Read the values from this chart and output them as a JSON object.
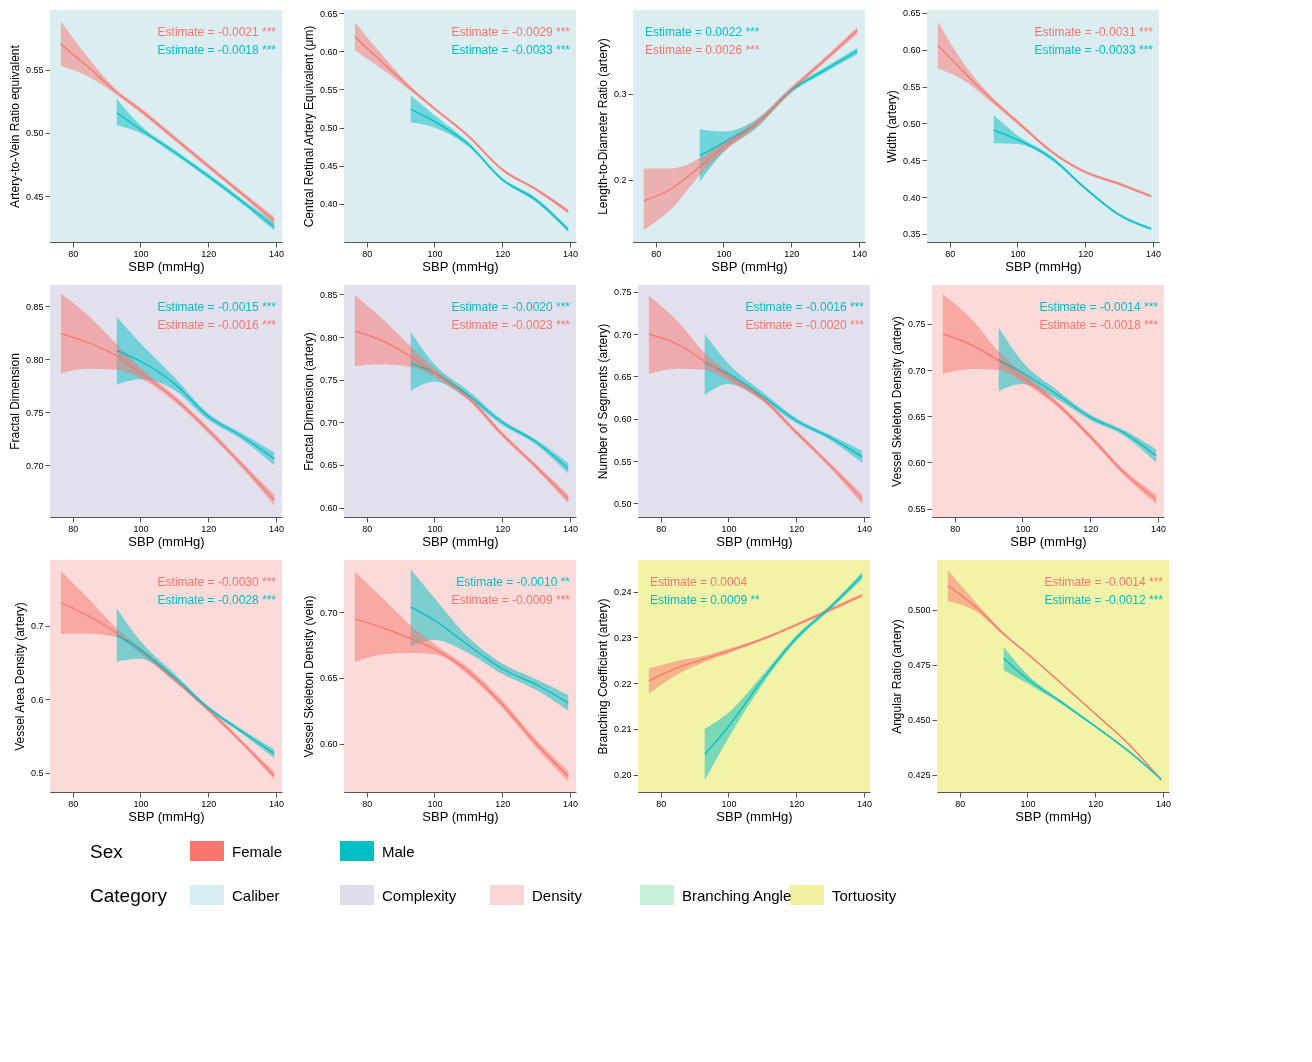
{
  "chart_data": [
    {
      "type": "line",
      "xlabel": "SBP (mmHg)",
      "ylabel": "Artery-to-Vein Ratio equivalent",
      "xlim": [
        73.3,
        141.8
      ],
      "xticks": [
        80,
        100,
        120,
        140
      ],
      "ylim": [
        0.414,
        0.597
      ],
      "yticks": [
        0.45,
        {
          "value": 0.5,
          "label": "0.50"
        },
        0.55
      ],
      "annotations": [
        "Estimate = -0.0021 ***",
        "Estimate = -0.0018 ***"
      ],
      "bands": [
        {
          "axis": "x",
          "from": 73.3,
          "to": 141.8,
          "color": "#dcedf2"
        }
      ],
      "series": [
        {
          "color": "#f8766d",
          "x": [
            76.5,
            85,
            93,
            100,
            110,
            120,
            130,
            139.5
          ],
          "values": [
            0.57,
            0.551,
            0.532,
            0.518,
            0.496,
            0.474,
            0.452,
            0.431
          ],
          "lower": [
            0.553,
            0.544,
            0.53,
            0.516,
            0.494,
            0.472,
            0.45,
            0.428
          ],
          "upper": [
            0.588,
            0.558,
            0.534,
            0.52,
            0.498,
            0.476,
            0.454,
            0.434
          ]
        },
        {
          "color": "#00bfc4",
          "x": [
            93,
            100,
            110,
            120,
            130,
            139.5
          ],
          "values": [
            0.516,
            0.503,
            0.485,
            0.466,
            0.446,
            0.426
          ],
          "lower": [
            0.506,
            0.5,
            0.483,
            0.464,
            0.444,
            0.423
          ],
          "upper": [
            0.527,
            0.506,
            0.487,
            0.468,
            0.448,
            0.429
          ]
        }
      ]
    },
    {
      "type": "line",
      "xlabel": "SBP (mmHg)",
      "ylabel": "Central Retinal Artery Equivalent (μm)",
      "xlim": [
        73.3,
        141.8
      ],
      "xticks": [
        80,
        100,
        120,
        140
      ],
      "ylim": [
        0.35,
        0.654
      ],
      "yticks": [
        {
          "value": 0.4,
          "label": "0.40"
        },
        0.45,
        {
          "value": 0.5,
          "label": "0.50"
        },
        0.55,
        {
          "value": 0.6,
          "label": "0.60"
        },
        0.65
      ],
      "annotations": [
        "Estimate = -0.0029 ***",
        "Estimate = -0.0033 ***"
      ],
      "bands": [
        {
          "axis": "x",
          "from": 73.3,
          "to": 141.8,
          "color": "#dcedf2"
        }
      ],
      "series": [
        {
          "color": "#f8766d",
          "x": [
            76.5,
            85,
            93,
            100,
            110,
            120,
            130,
            139.5
          ],
          "values": [
            0.619,
            0.584,
            0.551,
            0.525,
            0.489,
            0.445,
            0.419,
            0.39
          ],
          "lower": [
            0.601,
            0.575,
            0.548,
            0.523,
            0.487,
            0.443,
            0.417,
            0.387
          ],
          "upper": [
            0.638,
            0.593,
            0.554,
            0.527,
            0.491,
            0.447,
            0.421,
            0.393
          ]
        },
        {
          "color": "#00bfc4",
          "x": [
            93,
            100,
            110,
            120,
            130,
            139.5
          ],
          "values": [
            0.524,
            0.508,
            0.478,
            0.432,
            0.405,
            0.366
          ],
          "lower": [
            0.507,
            0.5,
            0.475,
            0.43,
            0.402,
            0.363
          ],
          "upper": [
            0.542,
            0.516,
            0.481,
            0.434,
            0.408,
            0.369
          ]
        }
      ]
    },
    {
      "type": "line",
      "xlabel": "SBP (mmHg)",
      "ylabel": "Length-to-Diameter Ratio (artery)",
      "xlim": [
        73.3,
        141.8
      ],
      "xticks": [
        80,
        100,
        120,
        140
      ],
      "ylim": [
        0.127,
        0.398
      ],
      "yticks": [
        0.2,
        0.3
      ],
      "annotations": [
        "Estimate = 0.0022 ***",
        "Estimate = 0.0026 ***"
      ],
      "bands": [
        {
          "axis": "x",
          "from": 73.3,
          "to": 141.8,
          "color": "#dcedf2"
        }
      ],
      "series": [
        {
          "color": "#00bfc4",
          "x": [
            93,
            100,
            110,
            120,
            130,
            139.5
          ],
          "values": [
            0.228,
            0.243,
            0.266,
            0.304,
            0.328,
            0.35
          ],
          "lower": [
            0.197,
            0.232,
            0.261,
            0.301,
            0.325,
            0.346
          ],
          "upper": [
            0.259,
            0.256,
            0.271,
            0.307,
            0.331,
            0.354
          ]
        },
        {
          "color": "#f8766d",
          "x": [
            76.5,
            85,
            93,
            100,
            110,
            120,
            130,
            139.5
          ],
          "values": [
            0.175,
            0.19,
            0.215,
            0.238,
            0.266,
            0.305,
            0.34,
            0.374
          ],
          "lower": [
            0.141,
            0.167,
            0.205,
            0.232,
            0.262,
            0.302,
            0.337,
            0.37
          ],
          "upper": [
            0.213,
            0.213,
            0.225,
            0.244,
            0.27,
            0.308,
            0.343,
            0.378
          ]
        }
      ]
    },
    {
      "type": "line",
      "xlabel": "SBP (mmHg)",
      "ylabel": "Width (artery)",
      "xlim": [
        73.3,
        141.8
      ],
      "xticks": [
        80,
        100,
        120,
        140
      ],
      "ylim": [
        0.339,
        0.654
      ],
      "yticks": [
        0.35,
        {
          "value": 0.4,
          "label": "0.40"
        },
        0.45,
        {
          "value": 0.5,
          "label": "0.50"
        },
        0.55,
        {
          "value": 0.6,
          "label": "0.60"
        },
        0.65
      ],
      "annotations": [
        "Estimate = -0.0031 ***",
        "Estimate = -0.0033 ***"
      ],
      "bands": [
        {
          "axis": "x",
          "from": 73.3,
          "to": 141.8,
          "color": "#dcedf2"
        }
      ],
      "series": [
        {
          "color": "#f8766d",
          "x": [
            76.5,
            85,
            93,
            100,
            110,
            120,
            130,
            139.5
          ],
          "values": [
            0.606,
            0.566,
            0.53,
            0.502,
            0.462,
            0.434,
            0.418,
            0.401
          ],
          "lower": [
            0.575,
            0.556,
            0.526,
            0.499,
            0.46,
            0.432,
            0.416,
            0.399
          ],
          "upper": [
            0.638,
            0.576,
            0.534,
            0.505,
            0.464,
            0.436,
            0.42,
            0.403
          ]
        },
        {
          "color": "#00bfc4",
          "x": [
            93,
            100,
            110,
            120,
            130,
            139.5
          ],
          "values": [
            0.491,
            0.478,
            0.453,
            0.412,
            0.376,
            0.357
          ],
          "lower": [
            0.473,
            0.472,
            0.45,
            0.41,
            0.374,
            0.355
          ],
          "upper": [
            0.511,
            0.484,
            0.456,
            0.414,
            0.378,
            0.359
          ]
        }
      ]
    },
    {
      "type": "line",
      "xlabel": "SBP (mmHg)",
      "ylabel": "Fractal Dimension",
      "xlim": [
        73.3,
        141.8
      ],
      "xticks": [
        80,
        100,
        120,
        140
      ],
      "ylim": [
        0.651,
        0.87
      ],
      "yticks": [
        {
          "value": 0.7,
          "label": "0.70"
        },
        0.75,
        {
          "value": 0.8,
          "label": "0.80"
        },
        0.85
      ],
      "annotations": [
        "Estimate = -0.0015 ***",
        "Estimate = -0.0016 ***"
      ],
      "bands": [
        {
          "axis": "x",
          "from": 73.3,
          "to": 141.8,
          "color": "#e3e0ee"
        }
      ],
      "series": [
        {
          "color": "#00bfc4",
          "x": [
            93,
            100,
            110,
            120,
            130,
            139.5
          ],
          "values": [
            0.808,
            0.798,
            0.777,
            0.746,
            0.727,
            0.706
          ],
          "lower": [
            0.776,
            0.781,
            0.771,
            0.743,
            0.724,
            0.7
          ],
          "upper": [
            0.84,
            0.815,
            0.783,
            0.749,
            0.73,
            0.712
          ]
        },
        {
          "color": "#f8766d",
          "x": [
            76.5,
            85,
            93,
            100,
            110,
            120,
            130,
            139.5
          ],
          "values": [
            0.824,
            0.815,
            0.803,
            0.787,
            0.763,
            0.733,
            0.7,
            0.667
          ],
          "lower": [
            0.787,
            0.791,
            0.79,
            0.782,
            0.76,
            0.73,
            0.697,
            0.662
          ],
          "upper": [
            0.862,
            0.84,
            0.814,
            0.792,
            0.766,
            0.736,
            0.703,
            0.672
          ]
        }
      ]
    },
    {
      "type": "line",
      "xlabel": "SBP (mmHg)",
      "ylabel": "Fractal Dimension (artery)",
      "xlim": [
        73.3,
        141.8
      ],
      "xticks": [
        80,
        100,
        120,
        140
      ],
      "ylim": [
        0.589,
        0.861
      ],
      "yticks": [
        {
          "value": 0.6,
          "label": "0.60"
        },
        0.65,
        {
          "value": 0.7,
          "label": "0.70"
        },
        0.75,
        {
          "value": 0.8,
          "label": "0.80"
        },
        0.85
      ],
      "annotations": [
        "Estimate = -0.0020 ***",
        "Estimate = -0.0023 ***"
      ],
      "bands": [
        {
          "axis": "x",
          "from": 73.3,
          "to": 141.8,
          "color": "#e3e0ee"
        }
      ],
      "series": [
        {
          "color": "#00bfc4",
          "x": [
            93,
            100,
            110,
            120,
            130,
            139.5
          ],
          "values": [
            0.769,
            0.758,
            0.732,
            0.7,
            0.677,
            0.646
          ],
          "lower": [
            0.737,
            0.748,
            0.727,
            0.697,
            0.674,
            0.64
          ],
          "upper": [
            0.806,
            0.768,
            0.737,
            0.703,
            0.68,
            0.652
          ]
        },
        {
          "color": "#f8766d",
          "x": [
            76.5,
            85,
            93,
            100,
            110,
            120,
            130,
            139.5
          ],
          "values": [
            0.807,
            0.795,
            0.777,
            0.758,
            0.729,
            0.686,
            0.648,
            0.61
          ],
          "lower": [
            0.766,
            0.768,
            0.765,
            0.753,
            0.726,
            0.683,
            0.645,
            0.605
          ],
          "upper": [
            0.849,
            0.82,
            0.789,
            0.763,
            0.732,
            0.689,
            0.651,
            0.615
          ]
        }
      ]
    },
    {
      "type": "line",
      "xlabel": "SBP (mmHg)",
      "ylabel": "Number of Segments (artery)",
      "xlim": [
        73.3,
        141.8
      ],
      "xticks": [
        80,
        100,
        120,
        140
      ],
      "ylim": [
        0.484,
        0.758
      ],
      "yticks": [
        {
          "value": 0.5,
          "label": "0.50"
        },
        0.55,
        {
          "value": 0.6,
          "label": "0.60"
        },
        0.65,
        {
          "value": 0.7,
          "label": "0.70"
        },
        0.75
      ],
      "annotations": [
        "Estimate = -0.0016 ***",
        "Estimate = -0.0020 ***"
      ],
      "bands": [
        {
          "axis": "x",
          "from": 73.3,
          "to": 141.8,
          "color": "#e3e0ee"
        }
      ],
      "series": [
        {
          "color": "#00bfc4",
          "x": [
            93,
            100,
            110,
            120,
            130,
            139.5
          ],
          "values": [
            0.666,
            0.653,
            0.627,
            0.598,
            0.578,
            0.555
          ],
          "lower": [
            0.628,
            0.641,
            0.622,
            0.595,
            0.575,
            0.548
          ],
          "upper": [
            0.7,
            0.665,
            0.632,
            0.601,
            0.581,
            0.562
          ]
        },
        {
          "color": "#f8766d",
          "x": [
            76.5,
            85,
            93,
            100,
            110,
            120,
            130,
            139.5
          ],
          "values": [
            0.7,
            0.688,
            0.668,
            0.65,
            0.624,
            0.584,
            0.545,
            0.505
          ],
          "lower": [
            0.653,
            0.659,
            0.658,
            0.645,
            0.621,
            0.581,
            0.542,
            0.499
          ],
          "upper": [
            0.746,
            0.715,
            0.678,
            0.655,
            0.627,
            0.587,
            0.548,
            0.511
          ]
        }
      ]
    },
    {
      "type": "line",
      "xlabel": "SBP (mmHg)",
      "ylabel": "Vessel Skeleton Density (artery)",
      "xlim": [
        73.3,
        141.8
      ],
      "xticks": [
        80,
        100,
        120,
        140
      ],
      "ylim": [
        0.541,
        0.792
      ],
      "yticks": [
        0.55,
        {
          "value": 0.6,
          "label": "0.60"
        },
        0.65,
        {
          "value": 0.7,
          "label": "0.70"
        },
        0.75
      ],
      "annotations": [
        "Estimate = -0.0014 ***",
        "Estimate = -0.0018 ***"
      ],
      "bands": [
        {
          "axis": "x",
          "from": 73.3,
          "to": 141.8,
          "color": "#fadbd9"
        }
      ],
      "series": [
        {
          "color": "#00bfc4",
          "x": [
            93,
            100,
            110,
            120,
            130,
            139.5
          ],
          "values": [
            0.711,
            0.697,
            0.674,
            0.649,
            0.632,
            0.607
          ],
          "lower": [
            0.677,
            0.685,
            0.669,
            0.646,
            0.629,
            0.6
          ],
          "upper": [
            0.746,
            0.709,
            0.679,
            0.652,
            0.635,
            0.614
          ]
        },
        {
          "color": "#f8766d",
          "x": [
            76.5,
            85,
            93,
            100,
            110,
            120,
            130,
            139.5
          ],
          "values": [
            0.739,
            0.727,
            0.71,
            0.692,
            0.664,
            0.628,
            0.589,
            0.56
          ],
          "lower": [
            0.696,
            0.701,
            0.7,
            0.687,
            0.661,
            0.625,
            0.586,
            0.555
          ],
          "upper": [
            0.782,
            0.755,
            0.72,
            0.697,
            0.667,
            0.631,
            0.592,
            0.565
          ]
        }
      ]
    },
    {
      "type": "line",
      "xlabel": "SBP (mmHg)",
      "ylabel": "Vessel Area Density (artery)",
      "xlim": [
        73.3,
        141.8
      ],
      "xticks": [
        80,
        100,
        120,
        140
      ],
      "ylim": [
        0.474,
        0.789
      ],
      "yticks": [
        0.5,
        0.6,
        0.7
      ],
      "annotations": [
        "Estimate = -0.0030 ***",
        "Estimate = -0.0028 ***"
      ],
      "bands": [
        {
          "axis": "x",
          "from": 73.3,
          "to": 141.8,
          "color": "#fadbd9"
        }
      ],
      "series": [
        {
          "color": "#f8766d",
          "x": [
            76.5,
            85,
            93,
            100,
            110,
            120,
            130,
            139.5
          ],
          "values": [
            0.731,
            0.712,
            0.69,
            0.666,
            0.627,
            0.586,
            0.541,
            0.496
          ],
          "lower": [
            0.689,
            0.689,
            0.684,
            0.662,
            0.624,
            0.583,
            0.538,
            0.491
          ],
          "upper": [
            0.774,
            0.735,
            0.696,
            0.67,
            0.63,
            0.589,
            0.544,
            0.501
          ]
        },
        {
          "color": "#00bfc4",
          "x": [
            93,
            100,
            110,
            120,
            130,
            139.5
          ],
          "values": [
            0.687,
            0.667,
            0.63,
            0.588,
            0.556,
            0.526
          ],
          "lower": [
            0.651,
            0.655,
            0.625,
            0.585,
            0.553,
            0.52
          ],
          "upper": [
            0.723,
            0.679,
            0.635,
            0.591,
            0.559,
            0.532
          ]
        }
      ]
    },
    {
      "type": "line",
      "xlabel": "SBP (mmHg)",
      "ylabel": "Vessel Skeleton Density (vein)",
      "xlim": [
        73.3,
        141.8
      ],
      "xticks": [
        80,
        100,
        120,
        140
      ],
      "ylim": [
        0.563,
        0.74
      ],
      "yticks": [
        {
          "value": 0.6,
          "label": "0.60"
        },
        0.65,
        {
          "value": 0.7,
          "label": "0.70"
        }
      ],
      "annotations": [
        "Estimate = -0.0010 **",
        "Estimate = -0.0009 ***"
      ],
      "bands": [
        {
          "axis": "x",
          "from": 73.3,
          "to": 141.8,
          "color": "#fadbd9"
        }
      ],
      "series": [
        {
          "color": "#00bfc4",
          "x": [
            93,
            100,
            110,
            120,
            130,
            139.5
          ],
          "values": [
            0.704,
            0.694,
            0.675,
            0.657,
            0.645,
            0.631
          ],
          "lower": [
            0.674,
            0.679,
            0.669,
            0.653,
            0.641,
            0.625
          ],
          "upper": [
            0.733,
            0.711,
            0.681,
            0.661,
            0.649,
            0.637
          ]
        },
        {
          "color": "#f8766d",
          "x": [
            76.5,
            85,
            93,
            100,
            110,
            120,
            130,
            139.5
          ],
          "values": [
            0.695,
            0.688,
            0.68,
            0.672,
            0.655,
            0.63,
            0.6,
            0.575
          ],
          "lower": [
            0.662,
            0.668,
            0.669,
            0.668,
            0.652,
            0.627,
            0.597,
            0.571
          ],
          "upper": [
            0.731,
            0.71,
            0.69,
            0.676,
            0.658,
            0.633,
            0.603,
            0.579
          ]
        }
      ]
    },
    {
      "type": "line",
      "xlabel": "SBP (mmHg)",
      "ylabel": "Branching Coefficient (artery)",
      "xlim": [
        73.3,
        141.8
      ],
      "xticks": [
        80,
        100,
        120,
        140
      ],
      "ylim": [
        0.1962,
        0.2469
      ],
      "yticks": [
        {
          "value": 0.2,
          "label": "0.20"
        },
        0.21,
        0.22,
        0.23,
        0.24
      ],
      "annotations": [
        "Estimate = 0.0004",
        "Estimate = 0.0009 **"
      ],
      "bands": [
        {
          "axis": "x",
          "from": 73.3,
          "to": 141.8,
          "color": "#f2f2a8"
        }
      ],
      "series": [
        {
          "color": "#f8766d",
          "x": [
            76.5,
            85,
            93,
            100,
            110,
            120,
            130,
            139.5
          ],
          "values": [
            0.2205,
            0.2234,
            0.2253,
            0.227,
            0.2296,
            0.2327,
            0.236,
            0.2392
          ],
          "lower": [
            0.2177,
            0.2219,
            0.2246,
            0.2265,
            0.2293,
            0.2324,
            0.2356,
            0.2388
          ],
          "upper": [
            0.2232,
            0.2249,
            0.226,
            0.2275,
            0.2299,
            0.233,
            0.2364,
            0.2396
          ]
        },
        {
          "color": "#00bfc4",
          "x": [
            93,
            100,
            110,
            120,
            130,
            139.5
          ],
          "values": [
            0.2044,
            0.2105,
            0.2207,
            0.2298,
            0.2365,
            0.2435
          ],
          "lower": [
            0.1987,
            0.208,
            0.2197,
            0.2292,
            0.236,
            0.2427
          ],
          "upper": [
            0.21,
            0.2135,
            0.2217,
            0.2304,
            0.237,
            0.2443
          ]
        }
      ]
    },
    {
      "type": "line",
      "xlabel": "SBP (mmHg)",
      "ylabel": "Angular Ratio (artery)",
      "xlim": [
        73.3,
        141.8
      ],
      "xticks": [
        80,
        100,
        120,
        140
      ],
      "ylim": [
        0.4171,
        0.5227
      ],
      "yticks": [
        0.425,
        {
          "value": 0.45,
          "label": "0.450"
        },
        0.475,
        {
          "value": 0.5,
          "label": "0.500"
        }
      ],
      "annotations": [
        "Estimate = -0.0014 ***",
        "Estimate = -0.0012 ***"
      ],
      "bands": [
        {
          "axis": "x",
          "from": 73.3,
          "to": 141.8,
          "color": "#f2f2a8"
        }
      ],
      "series": [
        {
          "color": "#f8766d",
          "x": [
            76.5,
            85,
            93,
            100,
            110,
            120,
            130,
            139.5
          ],
          "values": [
            0.511,
            0.501,
            0.489,
            0.48,
            0.4665,
            0.4527,
            0.4387,
            0.4225
          ],
          "lower": [
            0.504,
            0.499,
            0.4883,
            0.4796,
            0.4662,
            0.4524,
            0.4384,
            0.4222
          ],
          "upper": [
            0.518,
            0.503,
            0.4897,
            0.4804,
            0.4668,
            0.453,
            0.439,
            0.4228
          ]
        },
        {
          "color": "#00bfc4",
          "x": [
            93,
            100,
            110,
            120,
            130,
            139.5
          ],
          "values": [
            0.478,
            0.4685,
            0.458,
            0.447,
            0.4355,
            0.423
          ],
          "lower": [
            0.4725,
            0.4665,
            0.4572,
            0.4465,
            0.435,
            0.4225
          ],
          "upper": [
            0.483,
            0.4705,
            0.4588,
            0.4475,
            0.436,
            0.4235
          ]
        }
      ]
    },
    {
      "type": "other",
      "legend_title": "Sex",
      "categories": [
        "Female",
        "Male"
      ],
      "colors": [
        "#f8766d",
        "#00bfc4"
      ]
    },
    {
      "type": "other",
      "legend_title": "Category",
      "categories": [
        "Caliber",
        "Complexity",
        "Density",
        "Branching Angle",
        "Tortuosity"
      ],
      "colors": [
        "#d9eef3",
        "#e0dced",
        "#f9d5d3",
        "#c6f0d8",
        "#f1f1a0"
      ]
    }
  ]
}
